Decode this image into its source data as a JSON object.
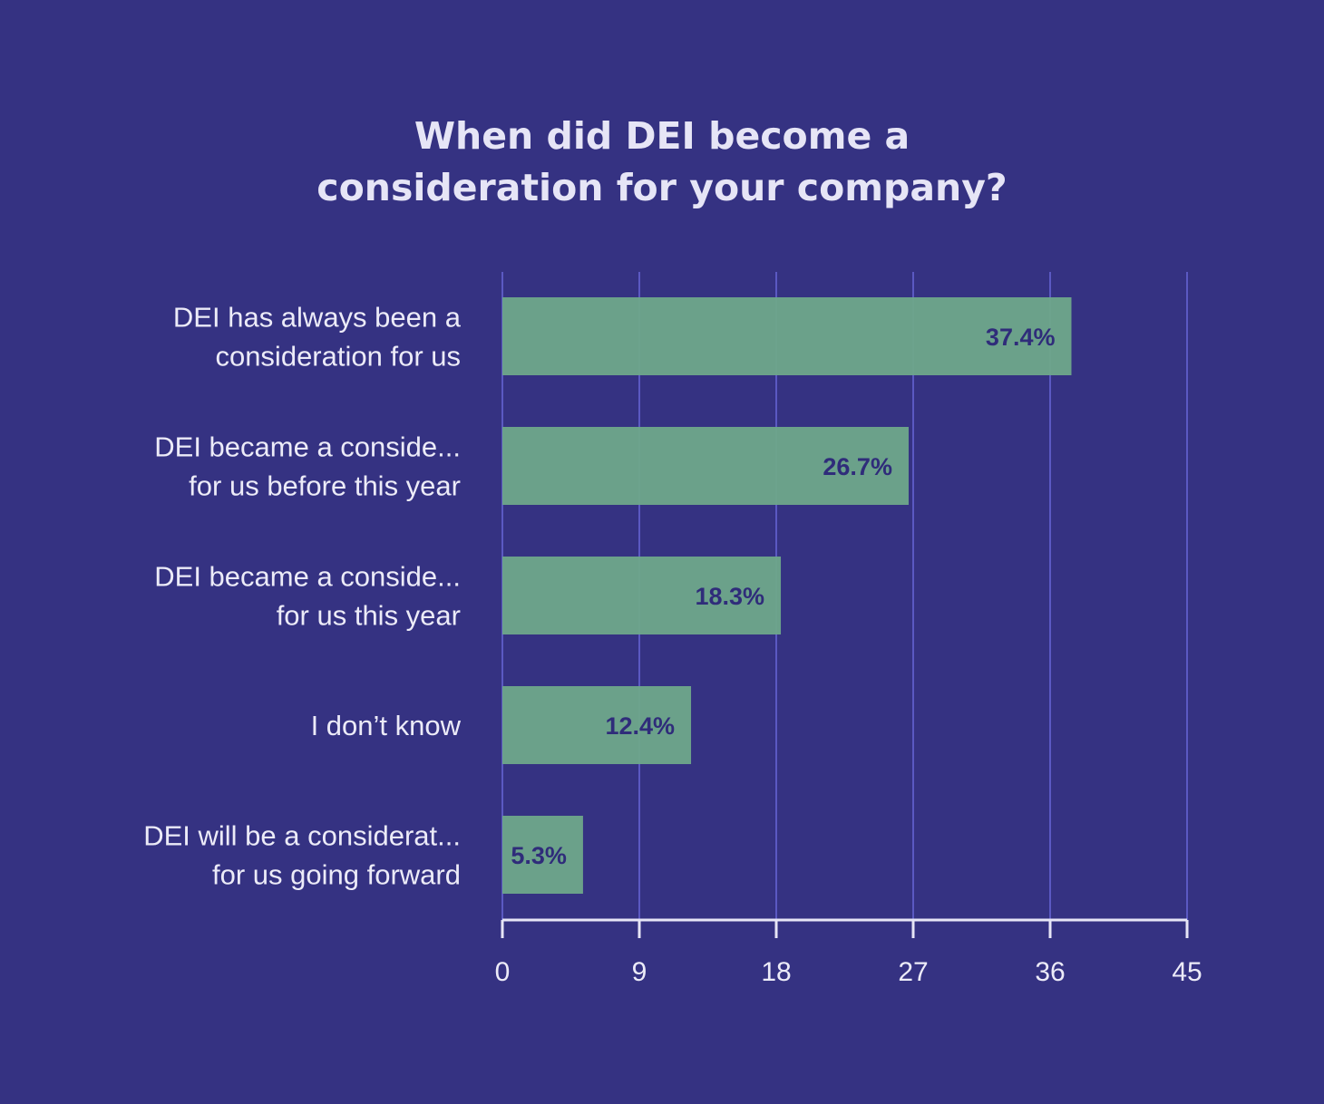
{
  "chart_data": {
    "type": "bar",
    "orientation": "horizontal",
    "title_lines": [
      "When did DEI become a",
      "consideration for your company?"
    ],
    "categories": [
      [
        "DEI has always been a",
        "consideration for us"
      ],
      [
        "DEI became a conside...",
        "for us before this year"
      ],
      [
        "DEI became a conside...",
        "for us this year"
      ],
      [
        "I don’t know"
      ],
      [
        "DEI will be a considerat...",
        "for us going forward"
      ]
    ],
    "values": [
      37.4,
      26.7,
      18.3,
      12.4,
      5.3
    ],
    "value_labels": [
      "37.4%",
      "26.7%",
      "18.3%",
      "12.4%",
      "5.3%"
    ],
    "xticks": [
      "0",
      "9",
      "18",
      "27",
      "36",
      "45"
    ],
    "xlim": [
      0,
      45
    ],
    "grid": true,
    "colors": {
      "background": "#353282",
      "bar": "#6fa88a",
      "gridline": "#5b59c2",
      "axis": "#e6e5f6",
      "text": "#ecebf8",
      "value_label": "#2f2c7a"
    }
  }
}
